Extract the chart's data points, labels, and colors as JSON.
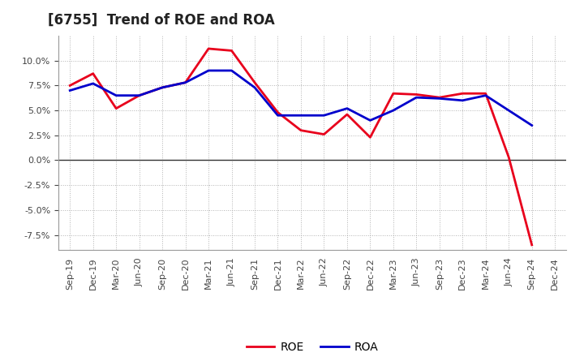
{
  "title": "[6755]  Trend of ROE and ROA",
  "labels": [
    "Sep-19",
    "Dec-19",
    "Mar-20",
    "Jun-20",
    "Sep-20",
    "Dec-20",
    "Mar-21",
    "Jun-21",
    "Sep-21",
    "Dec-21",
    "Mar-22",
    "Jun-22",
    "Sep-22",
    "Dec-22",
    "Mar-23",
    "Jun-23",
    "Sep-23",
    "Dec-23",
    "Mar-24",
    "Jun-24",
    "Sep-24",
    "Dec-24"
  ],
  "ROE": [
    7.5,
    8.7,
    5.2,
    6.5,
    7.3,
    7.8,
    11.2,
    11.0,
    7.8,
    4.8,
    3.0,
    2.6,
    4.6,
    2.3,
    6.7,
    6.6,
    6.3,
    6.7,
    6.7,
    0.3,
    -8.5,
    null
  ],
  "ROA": [
    7.0,
    7.7,
    6.5,
    6.5,
    7.3,
    7.8,
    9.0,
    9.0,
    7.3,
    4.5,
    4.5,
    4.5,
    5.2,
    4.0,
    5.0,
    6.3,
    6.2,
    6.0,
    6.5,
    5.0,
    3.5,
    null
  ],
  "ROE_color": "#e8001c",
  "ROA_color": "#0000cc",
  "background_color": "#ffffff",
  "plot_bg_color": "#ffffff",
  "grid_color": "#aaaaaa",
  "ylim": [
    -9.0,
    12.5
  ],
  "yticks": [
    -7.5,
    -5.0,
    -2.5,
    0.0,
    2.5,
    5.0,
    7.5,
    10.0
  ],
  "legend_ROE": "ROE",
  "legend_ROA": "ROA",
  "linewidth": 2.0,
  "title_fontsize": 12,
  "tick_fontsize": 8,
  "legend_fontsize": 10
}
